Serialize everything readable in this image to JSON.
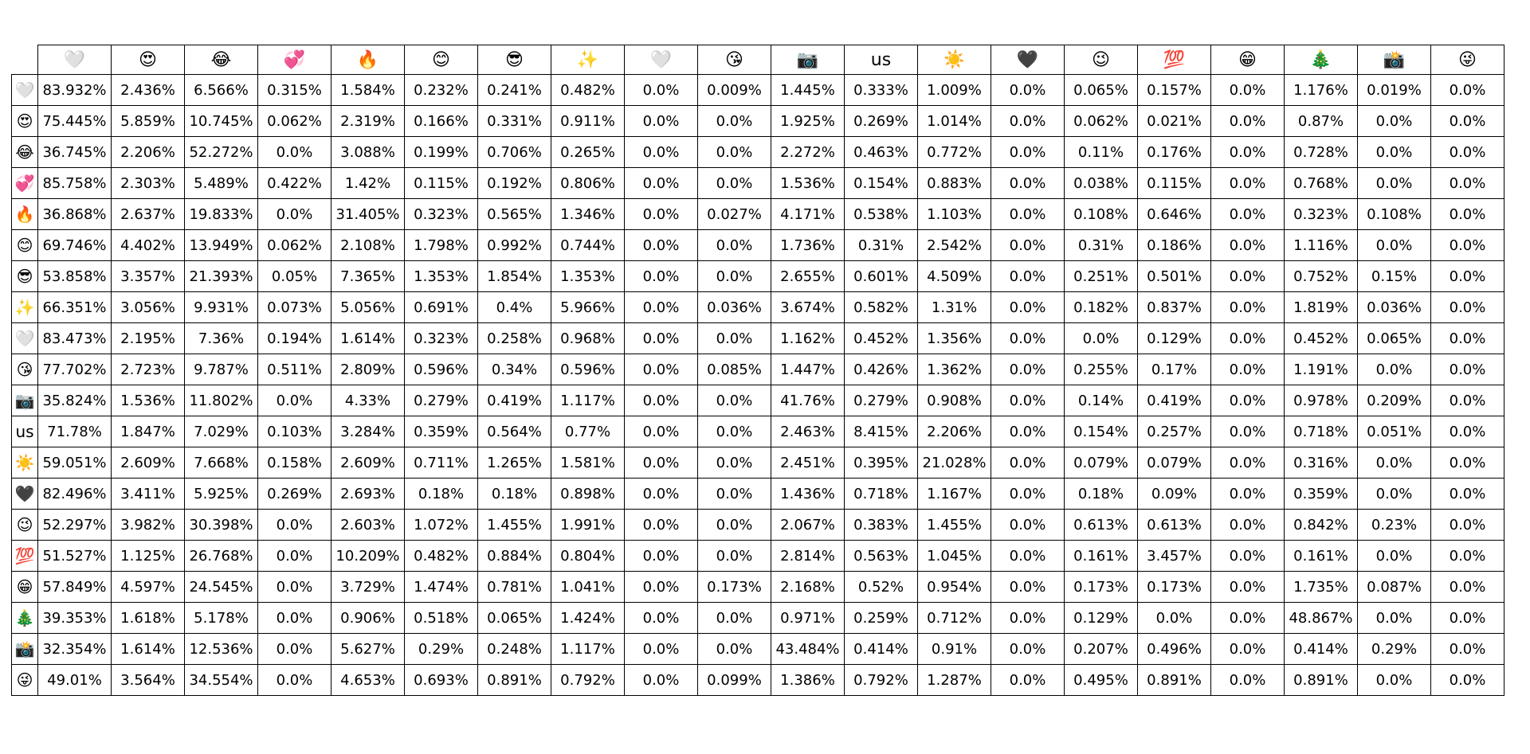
{
  "labels": [
    "🤍",
    "😍",
    "😂",
    "💞",
    "🔥",
    "😊",
    "😎",
    "✨",
    "🤍",
    "😘",
    "📷",
    "us",
    "☀️",
    "🖤",
    "😉",
    "💯",
    "😁",
    "🎄",
    "📸",
    "😜"
  ],
  "rows": [
    [
      "83.932%",
      "2.436%",
      "6.566%",
      "0.315%",
      "1.584%",
      "0.232%",
      "0.241%",
      "0.482%",
      "0.0%",
      "0.009%",
      "1.445%",
      "0.333%",
      "1.009%",
      "0.0%",
      "0.065%",
      "0.157%",
      "0.0%",
      "1.176%",
      "0.019%",
      "0.0%"
    ],
    [
      "75.445%",
      "5.859%",
      "10.745%",
      "0.062%",
      "2.319%",
      "0.166%",
      "0.331%",
      "0.911%",
      "0.0%",
      "0.0%",
      "1.925%",
      "0.269%",
      "1.014%",
      "0.0%",
      "0.062%",
      "0.021%",
      "0.0%",
      "0.87%",
      "0.0%",
      "0.0%"
    ],
    [
      "36.745%",
      "2.206%",
      "52.272%",
      "0.0%",
      "3.088%",
      "0.199%",
      "0.706%",
      "0.265%",
      "0.0%",
      "0.0%",
      "2.272%",
      "0.463%",
      "0.772%",
      "0.0%",
      "0.11%",
      "0.176%",
      "0.0%",
      "0.728%",
      "0.0%",
      "0.0%"
    ],
    [
      "85.758%",
      "2.303%",
      "5.489%",
      "0.422%",
      "1.42%",
      "0.115%",
      "0.192%",
      "0.806%",
      "0.0%",
      "0.0%",
      "1.536%",
      "0.154%",
      "0.883%",
      "0.0%",
      "0.038%",
      "0.115%",
      "0.0%",
      "0.768%",
      "0.0%",
      "0.0%"
    ],
    [
      "36.868%",
      "2.637%",
      "19.833%",
      "0.0%",
      "31.405%",
      "0.323%",
      "0.565%",
      "1.346%",
      "0.0%",
      "0.027%",
      "4.171%",
      "0.538%",
      "1.103%",
      "0.0%",
      "0.108%",
      "0.646%",
      "0.0%",
      "0.323%",
      "0.108%",
      "0.0%"
    ],
    [
      "69.746%",
      "4.402%",
      "13.949%",
      "0.062%",
      "2.108%",
      "1.798%",
      "0.992%",
      "0.744%",
      "0.0%",
      "0.0%",
      "1.736%",
      "0.31%",
      "2.542%",
      "0.0%",
      "0.31%",
      "0.186%",
      "0.0%",
      "1.116%",
      "0.0%",
      "0.0%"
    ],
    [
      "53.858%",
      "3.357%",
      "21.393%",
      "0.05%",
      "7.365%",
      "1.353%",
      "1.854%",
      "1.353%",
      "0.0%",
      "0.0%",
      "2.655%",
      "0.601%",
      "4.509%",
      "0.0%",
      "0.251%",
      "0.501%",
      "0.0%",
      "0.752%",
      "0.15%",
      "0.0%"
    ],
    [
      "66.351%",
      "3.056%",
      "9.931%",
      "0.073%",
      "5.056%",
      "0.691%",
      "0.4%",
      "5.966%",
      "0.0%",
      "0.036%",
      "3.674%",
      "0.582%",
      "1.31%",
      "0.0%",
      "0.182%",
      "0.837%",
      "0.0%",
      "1.819%",
      "0.036%",
      "0.0%"
    ],
    [
      "83.473%",
      "2.195%",
      "7.36%",
      "0.194%",
      "1.614%",
      "0.323%",
      "0.258%",
      "0.968%",
      "0.0%",
      "0.0%",
      "1.162%",
      "0.452%",
      "1.356%",
      "0.0%",
      "0.0%",
      "0.129%",
      "0.0%",
      "0.452%",
      "0.065%",
      "0.0%"
    ],
    [
      "77.702%",
      "2.723%",
      "9.787%",
      "0.511%",
      "2.809%",
      "0.596%",
      "0.34%",
      "0.596%",
      "0.0%",
      "0.085%",
      "1.447%",
      "0.426%",
      "1.362%",
      "0.0%",
      "0.255%",
      "0.17%",
      "0.0%",
      "1.191%",
      "0.0%",
      "0.0%"
    ],
    [
      "35.824%",
      "1.536%",
      "11.802%",
      "0.0%",
      "4.33%",
      "0.279%",
      "0.419%",
      "1.117%",
      "0.0%",
      "0.0%",
      "41.76%",
      "0.279%",
      "0.908%",
      "0.0%",
      "0.14%",
      "0.419%",
      "0.0%",
      "0.978%",
      "0.209%",
      "0.0%"
    ],
    [
      "71.78%",
      "1.847%",
      "7.029%",
      "0.103%",
      "3.284%",
      "0.359%",
      "0.564%",
      "0.77%",
      "0.0%",
      "0.0%",
      "2.463%",
      "8.415%",
      "2.206%",
      "0.0%",
      "0.154%",
      "0.257%",
      "0.0%",
      "0.718%",
      "0.051%",
      "0.0%"
    ],
    [
      "59.051%",
      "2.609%",
      "7.668%",
      "0.158%",
      "2.609%",
      "0.711%",
      "1.265%",
      "1.581%",
      "0.0%",
      "0.0%",
      "2.451%",
      "0.395%",
      "21.028%",
      "0.0%",
      "0.079%",
      "0.079%",
      "0.0%",
      "0.316%",
      "0.0%",
      "0.0%"
    ],
    [
      "82.496%",
      "3.411%",
      "5.925%",
      "0.269%",
      "2.693%",
      "0.18%",
      "0.18%",
      "0.898%",
      "0.0%",
      "0.0%",
      "1.436%",
      "0.718%",
      "1.167%",
      "0.0%",
      "0.18%",
      "0.09%",
      "0.0%",
      "0.359%",
      "0.0%",
      "0.0%"
    ],
    [
      "52.297%",
      "3.982%",
      "30.398%",
      "0.0%",
      "2.603%",
      "1.072%",
      "1.455%",
      "1.991%",
      "0.0%",
      "0.0%",
      "2.067%",
      "0.383%",
      "1.455%",
      "0.0%",
      "0.613%",
      "0.613%",
      "0.0%",
      "0.842%",
      "0.23%",
      "0.0%"
    ],
    [
      "51.527%",
      "1.125%",
      "26.768%",
      "0.0%",
      "10.209%",
      "0.482%",
      "0.884%",
      "0.804%",
      "0.0%",
      "0.0%",
      "2.814%",
      "0.563%",
      "1.045%",
      "0.0%",
      "0.161%",
      "3.457%",
      "0.0%",
      "0.161%",
      "0.0%",
      "0.0%"
    ],
    [
      "57.849%",
      "4.597%",
      "24.545%",
      "0.0%",
      "3.729%",
      "1.474%",
      "0.781%",
      "1.041%",
      "0.0%",
      "0.173%",
      "2.168%",
      "0.52%",
      "0.954%",
      "0.0%",
      "0.173%",
      "0.173%",
      "0.0%",
      "1.735%",
      "0.087%",
      "0.0%"
    ],
    [
      "39.353%",
      "1.618%",
      "5.178%",
      "0.0%",
      "0.906%",
      "0.518%",
      "0.065%",
      "1.424%",
      "0.0%",
      "0.0%",
      "0.971%",
      "0.259%",
      "0.712%",
      "0.0%",
      "0.129%",
      "0.0%",
      "0.0%",
      "48.867%",
      "0.0%",
      "0.0%"
    ],
    [
      "32.354%",
      "1.614%",
      "12.536%",
      "0.0%",
      "5.627%",
      "0.29%",
      "0.248%",
      "1.117%",
      "0.0%",
      "0.0%",
      "43.484%",
      "0.414%",
      "0.91%",
      "0.0%",
      "0.207%",
      "0.496%",
      "0.0%",
      "0.414%",
      "0.29%",
      "0.0%"
    ],
    [
      "49.01%",
      "3.564%",
      "34.554%",
      "0.0%",
      "4.653%",
      "0.693%",
      "0.891%",
      "0.792%",
      "0.0%",
      "0.099%",
      "1.386%",
      "0.792%",
      "1.287%",
      "0.0%",
      "0.495%",
      "0.891%",
      "0.0%",
      "0.891%",
      "0.0%",
      "0.0%"
    ]
  ]
}
